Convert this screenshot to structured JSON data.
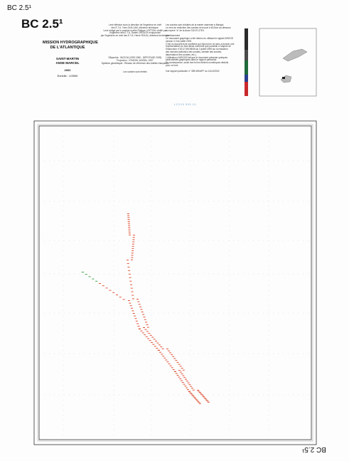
{
  "header": {
    "sheet_small": "BC 2.5¹",
    "sheet_large": "BC 2.5¹",
    "mission": "MISSION HYDROGRAPHIQUE",
    "mission_line2": "DE L'ATLANTIQUE",
    "place": "SAINT-MARTIN",
    "place_line2": "ANSE MARCEL",
    "year": "2002",
    "scale": "Echelle : 1/2500"
  },
  "survey_notes": [
    "Levé effectué sous la direction de l'ingénieur en chef",
    "des E.T.A. Yves GUILLAM, directeur technique.",
    "Levé rédigé par le premier maître Philippe LOPTON, vérifié par",
    "l'ingénieur des E.T.A. Daniel CREACH et approuvé",
    "par l'ingénieur en chef des E.T.A. Hervé ROLIN, directeur technique."
  ],
  "geodesy_notes": [
    "Ellipsoïde : WGS 84 (GRS 1980 - DÉPOTAGE 2009)",
    "Projection : UTM20N, WGS84, 1997",
    "Système géodésique : Réseau de référence des Antilles françaises"
  ],
  "soundings_note": "Les sondes sont réelles",
  "right_notes": [
    "Les sondes sont réduites de la marée observée à Marigot.",
    "Le zéro de réduction des sondes se trouve à 60,5cm au-dessous",
    "du repère \"a\" de la Anse GIS-97-07EV.",
    "",
    "Avertissement",
    "Ce document graphique a été obtenu en utilisant le logiciel ARGOS",
    "version 3.3 de juillet 2000.",
    "C'est un document de synthèse qui répond en ce sens à donner une",
    "représentation du fond aussi conforme que possible à l'aspect de",
    "l'instruction n°2012 SHOM/MI du 3 juillet 1999 sur la rédaction",
    "des minutes (sélection des sondes, densité des sondes,",
    "dépendance des sondes, etc.).",
    "L'utilisation d'ARGOS fait que le document présente quelques",
    "particularités graphiques dans le rapport particulier.",
    "En conséquence, seule font foi les fichiers numériques déduits",
    "pour ce levé.",
    "",
    "Voir rapport particulier n° 398 MH/APF du 14/12/2002"
  ],
  "stamp": "LC219 003 10",
  "footer": {
    "sheet_rotated": "BC 2.5¹"
  }
}
